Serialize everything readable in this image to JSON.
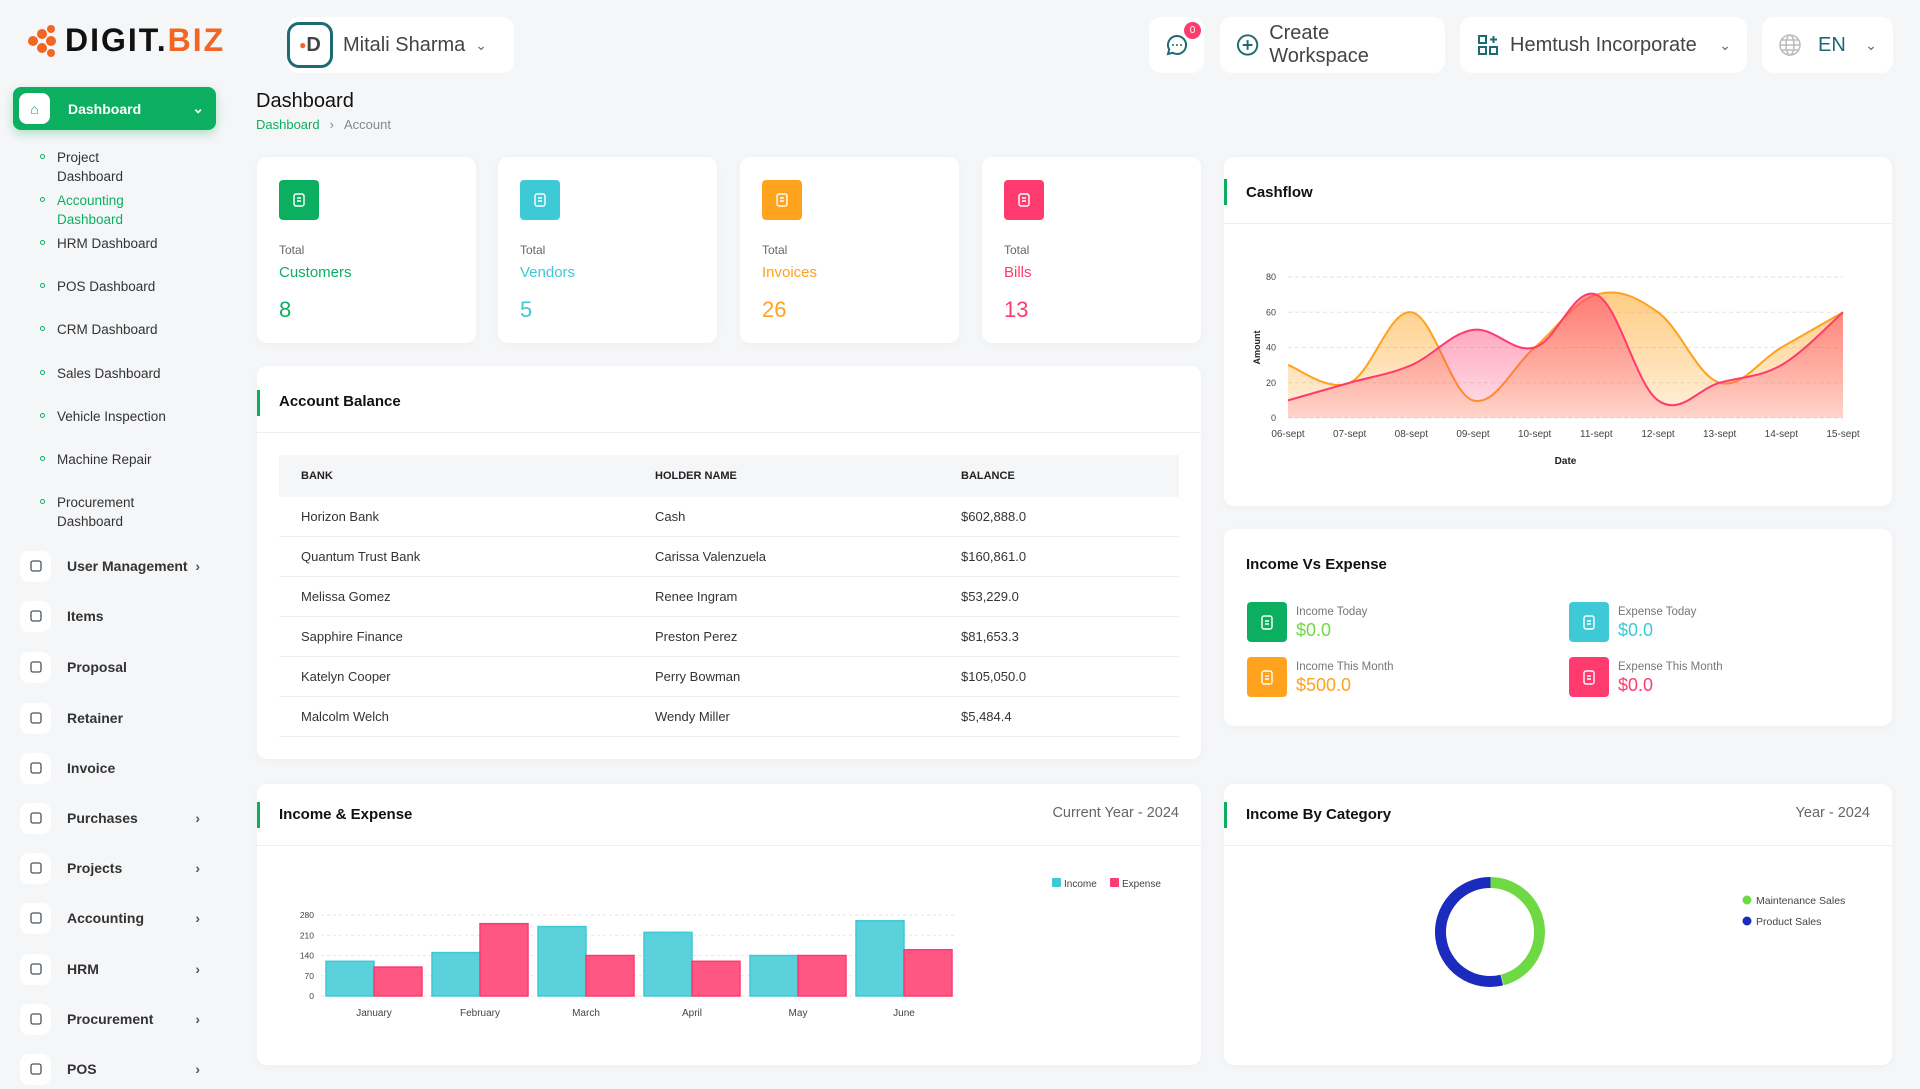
{
  "logo": {
    "text_a": "DIGIT.",
    "text_b": "BIZ"
  },
  "header": {
    "user": "Mitali Sharma",
    "messages_count": "0",
    "create_workspace": "Create Workspace",
    "company": "Hemtush Incorporate",
    "language": "EN"
  },
  "sidebar": {
    "active": "Dashboard",
    "sub_items": [
      "Project Dashboard",
      "Accounting Dashboard",
      "HRM Dashboard",
      "POS Dashboard",
      "CRM Dashboard",
      "Sales Dashboard",
      "Vehicle Inspection",
      "Machine Repair",
      "Procurement Dashboard"
    ],
    "active_sub": "Accounting Dashboard",
    "items": [
      {
        "label": "User Management",
        "icon": "users-icon",
        "chev": true
      },
      {
        "label": "Items",
        "icon": "cart-icon",
        "chev": false
      },
      {
        "label": "Proposal",
        "icon": "swap-icon",
        "chev": false
      },
      {
        "label": "Retainer",
        "icon": "save-icon",
        "chev": false
      },
      {
        "label": "Invoice",
        "icon": "file-icon",
        "chev": false
      },
      {
        "label": "Purchases",
        "icon": "cart-icon",
        "chev": true
      },
      {
        "label": "Projects",
        "icon": "checkbox-icon",
        "chev": true
      },
      {
        "label": "Accounting",
        "icon": "grid-plus-icon",
        "chev": true
      },
      {
        "label": "HRM",
        "icon": "hrm-icon",
        "chev": true
      },
      {
        "label": "Procurement",
        "icon": "cart-percent-icon",
        "chev": true
      },
      {
        "label": "POS",
        "icon": "dots-grid-icon",
        "chev": true
      }
    ]
  },
  "page": {
    "title": "Dashboard",
    "breadcrumb": [
      "Dashboard",
      "Account"
    ]
  },
  "stats": [
    {
      "total": "Total",
      "label": "Customers",
      "value": "8",
      "color": "#0caf60",
      "icon": "users-icon"
    },
    {
      "total": "Total",
      "label": "Vendors",
      "value": "5",
      "color": "#3ec9d6",
      "icon": "note-icon"
    },
    {
      "total": "Total",
      "label": "Invoices",
      "value": "26",
      "color": "#ffa21d",
      "icon": "file-icon"
    },
    {
      "total": "Total",
      "label": "Bills",
      "value": "13",
      "color": "#ff3a6e",
      "icon": "clipboard-dollar-icon"
    }
  ],
  "account_balance": {
    "title": "Account Balance",
    "columns": [
      "BANK",
      "HOLDER NAME",
      "BALANCE"
    ],
    "rows": [
      [
        "Horizon Bank",
        "Cash",
        "$602,888.0"
      ],
      [
        "Quantum Trust Bank",
        "Carissa Valenzuela",
        "$160,861.0"
      ],
      [
        "Melissa Gomez",
        "Renee Ingram",
        "$53,229.0"
      ],
      [
        "Sapphire Finance",
        "Preston Perez",
        "$81,653.3"
      ],
      [
        "Katelyn Cooper",
        "Perry Bowman",
        "$105,050.0"
      ],
      [
        "Malcolm Welch",
        "Wendy Miller",
        "$5,484.4"
      ]
    ]
  },
  "income_vs_expense": {
    "title": "Income Vs Expense",
    "items": [
      {
        "label": "Income Today",
        "value": "$0.0",
        "color": "#0caf60",
        "text_color": "#6fd943"
      },
      {
        "label": "Expense Today",
        "value": "$0.0",
        "color": "#3ec9d6",
        "text_color": "#3ec9d6"
      },
      {
        "label": "Income This Month",
        "value": "$500.0",
        "color": "#ffa21d",
        "text_color": "#ffa21d"
      },
      {
        "label": "Expense This Month",
        "value": "$0.0",
        "color": "#ff3a6e",
        "text_color": "#ff3a6e"
      }
    ]
  },
  "chart_data": [
    {
      "id": "cashflow",
      "title": "Cashflow",
      "type": "area",
      "xlabel": "Date",
      "ylabel": "Amount",
      "ylim": [
        0,
        80
      ],
      "yticks": [
        0,
        20,
        40,
        60,
        80
      ],
      "grid": true,
      "x": [
        "06-sept",
        "07-sept",
        "08-sept",
        "09-sept",
        "10-sept",
        "11-sept",
        "12-sept",
        "13-sept",
        "14-sept",
        "15-sept"
      ],
      "series": [
        {
          "values": [
            30,
            20,
            60,
            10,
            40,
            70,
            60,
            20,
            40,
            60
          ],
          "color": "#ffa21d"
        },
        {
          "values": [
            10,
            20,
            30,
            50,
            40,
            70,
            10,
            20,
            30,
            60
          ],
          "color": "#ff3a6e"
        }
      ]
    },
    {
      "id": "income-expense",
      "title": "Income & Expense",
      "subtitle": "Current Year - 2024",
      "type": "bar",
      "ylim": [
        0,
        280
      ],
      "yticks": [
        0,
        70,
        140,
        210,
        280
      ],
      "grid": true,
      "legend": "top-right",
      "categories": [
        "January",
        "February",
        "March",
        "April",
        "May",
        "June"
      ],
      "series": [
        {
          "name": "Income",
          "values": [
            120,
            150,
            240,
            220,
            140,
            260
          ],
          "color": "#3ec9d6"
        },
        {
          "name": "Expense",
          "values": [
            100,
            250,
            140,
            120,
            140,
            160
          ],
          "color": "#ff3a6e"
        }
      ]
    },
    {
      "id": "income-category",
      "title": "Income By Category",
      "subtitle": "Year - 2024",
      "type": "pie",
      "donut": true,
      "legend": "right",
      "categories": [
        "Maintenance Sales",
        "Product Sales"
      ],
      "values_percent": [
        46,
        54
      ],
      "colors": [
        "#6fd943",
        "#1b2bbd"
      ]
    }
  ]
}
